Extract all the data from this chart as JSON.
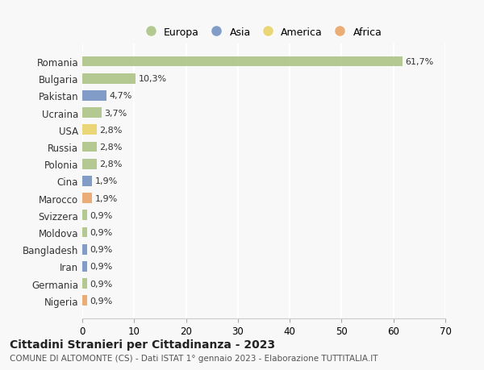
{
  "countries": [
    "Romania",
    "Bulgaria",
    "Pakistan",
    "Ucraina",
    "USA",
    "Russia",
    "Polonia",
    "Cina",
    "Marocco",
    "Svizzera",
    "Moldova",
    "Bangladesh",
    "Iran",
    "Germania",
    "Nigeria"
  ],
  "values": [
    61.7,
    10.3,
    4.7,
    3.7,
    2.8,
    2.8,
    2.8,
    1.9,
    1.9,
    0.9,
    0.9,
    0.9,
    0.9,
    0.9,
    0.9
  ],
  "labels": [
    "61,7%",
    "10,3%",
    "4,7%",
    "3,7%",
    "2,8%",
    "2,8%",
    "2,8%",
    "1,9%",
    "1,9%",
    "0,9%",
    "0,9%",
    "0,9%",
    "0,9%",
    "0,9%",
    "0,9%"
  ],
  "continents": [
    "Europa",
    "Europa",
    "Asia",
    "Europa",
    "America",
    "Europa",
    "Europa",
    "Asia",
    "Africa",
    "Europa",
    "Europa",
    "Asia",
    "Asia",
    "Europa",
    "Africa"
  ],
  "continent_colors": {
    "Europa": "#a8c080",
    "Asia": "#6b8cbf",
    "America": "#e8d060",
    "Africa": "#e8a060"
  },
  "legend_order": [
    "Europa",
    "Asia",
    "America",
    "Africa"
  ],
  "xlim": [
    0,
    70
  ],
  "xticks": [
    0,
    10,
    20,
    30,
    40,
    50,
    60,
    70
  ],
  "title": "Cittadini Stranieri per Cittadinanza - 2023",
  "subtitle": "COMUNE DI ALTOMONTE (CS) - Dati ISTAT 1° gennaio 2023 - Elaborazione TUTTITALIA.IT",
  "background_color": "#f8f8f8",
  "grid_color": "#ffffff",
  "bar_height": 0.6
}
